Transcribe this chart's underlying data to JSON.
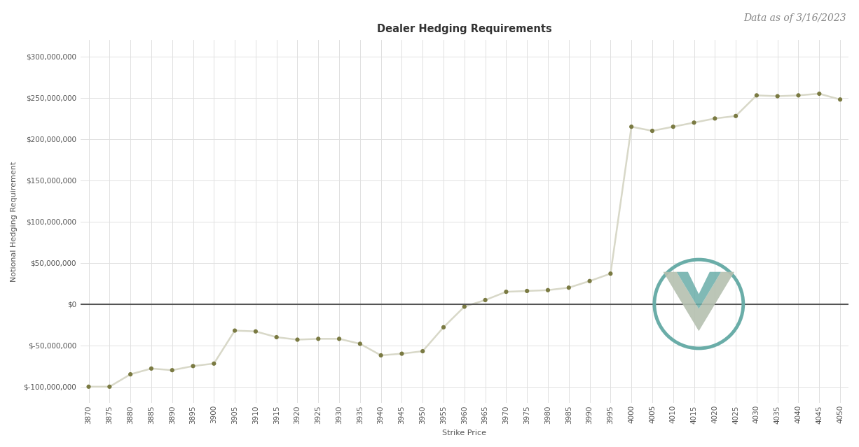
{
  "title": "Dealer Hedging Requirements",
  "subtitle": "Data as of 3/16/2023",
  "xlabel": "Strike Price",
  "ylabel": "Notional Hedging Requirement",
  "background_color": "#ffffff",
  "plot_bg_color": "#ffffff",
  "line_color": "#d8d8c8",
  "marker_color": "#7a7a42",
  "zero_line_color": "#555555",
  "grid_color": "#e0e0e0",
  "strikes": [
    3870,
    3875,
    3880,
    3885,
    3890,
    3895,
    3900,
    3905,
    3910,
    3915,
    3920,
    3925,
    3930,
    3935,
    3940,
    3945,
    3950,
    3955,
    3960,
    3965,
    3970,
    3975,
    3980,
    3985,
    3990,
    3995,
    4000,
    4005,
    4010,
    4015,
    4020,
    4025,
    4030,
    4035,
    4040,
    4045,
    4050
  ],
  "values": [
    -100000000,
    -100000000,
    -85000000,
    -78000000,
    -80000000,
    -75000000,
    -72000000,
    -32000000,
    -33000000,
    -40000000,
    -43000000,
    -42000000,
    -42000000,
    -48000000,
    -62000000,
    -60000000,
    -57000000,
    -28000000,
    -3000000,
    5000000,
    15000000,
    16000000,
    17000000,
    20000000,
    28000000,
    37000000,
    215000000,
    210000000,
    215000000,
    220000000,
    225000000,
    228000000,
    253000000,
    252000000,
    253000000,
    255000000,
    248000000
  ],
  "ylim": [
    -120000000,
    320000000
  ],
  "yticks": [
    -100000000,
    -50000000,
    0,
    50000000,
    100000000,
    150000000,
    200000000,
    250000000,
    300000000
  ],
  "title_fontsize": 10.5,
  "subtitle_fontsize": 10,
  "axis_label_fontsize": 8,
  "tick_fontsize": 7.5,
  "logo_circle_color": "#6aada8",
  "logo_v_outer_color": "#b0bdb0",
  "logo_v_inner_color": "#6aada8"
}
